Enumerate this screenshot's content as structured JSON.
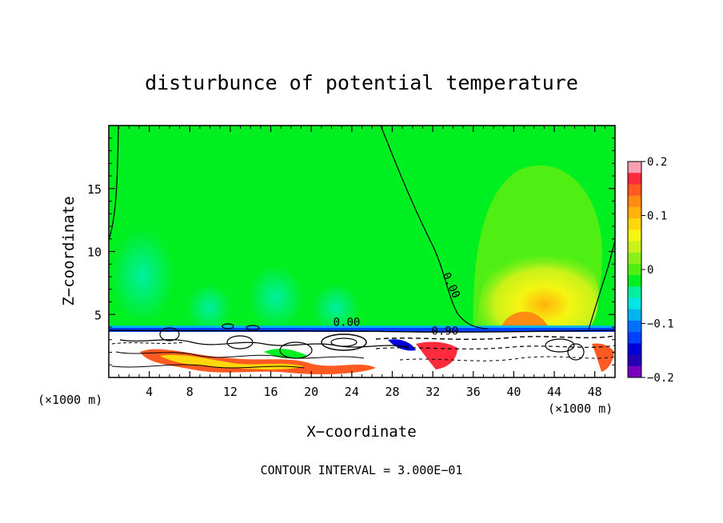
{
  "chart_data": {
    "type": "heatmap",
    "title": "disturbunce of potential temperature",
    "xlabel": "X−coordinate",
    "ylabel": "Z−coordinate",
    "x_unit_left": "(×1000 m)",
    "x_unit_right": "(×1000 m)",
    "footer": "CONTOUR INTERVAL = 3.000E−01",
    "xlim": [
      0,
      50
    ],
    "ylim": [
      0,
      20
    ],
    "x_ticks": [
      4,
      8,
      12,
      16,
      20,
      24,
      28,
      32,
      36,
      40,
      44,
      48
    ],
    "y_ticks": [
      5,
      10,
      15
    ],
    "contour_interval": 0.3,
    "contour_labels": [
      {
        "text": "0.00",
        "x": 33.5,
        "y": 7.2
      },
      {
        "text": "0.00",
        "x": 23.5,
        "y": 4.1
      },
      {
        "text": "0.90",
        "x": 33.2,
        "y": 3.4
      }
    ],
    "colorbar": {
      "min": -0.2,
      "max": 0.2,
      "tick_values": [
        0.2,
        0.1,
        0,
        -0.1,
        -0.2
      ],
      "tick_labels": [
        "0.2",
        "0.1",
        "0",
        "−0.1",
        "−0.2"
      ],
      "colors": [
        "#f7a0b4",
        "#ff2a3c",
        "#ff5a22",
        "#ff8c12",
        "#ffb20a",
        "#ffd70a",
        "#f5f511",
        "#c8f219",
        "#8ef01a",
        "#50ef14",
        "#00ef20",
        "#00efa0",
        "#00e5e5",
        "#00b4f0",
        "#0070ff",
        "#0040ff",
        "#0000d8",
        "#2400b4",
        "#7800bc"
      ]
    }
  }
}
